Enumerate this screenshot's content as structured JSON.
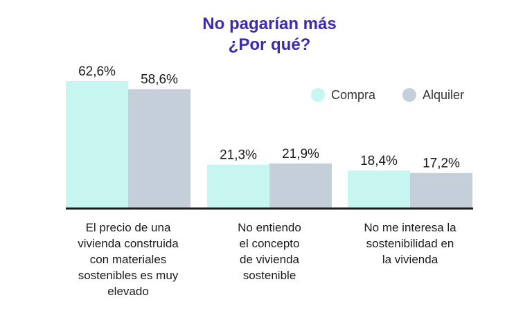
{
  "chart_data": {
    "type": "bar",
    "title": "No pagarían más",
    "subtitle": "¿Por qué?",
    "categories": [
      [
        "El precio de una",
        "vivienda construida",
        "con materiales",
        "sostenibles es muy",
        "elevado"
      ],
      [
        "No entiendo",
        "el concepto",
        "de vivienda",
        "sostenible"
      ],
      [
        "No me interesa la",
        "sostenibilidad en",
        "la vivienda"
      ]
    ],
    "series": [
      {
        "name": "Compra",
        "color": "#c7f5ef",
        "values": [
          62.6,
          21.3,
          18.4
        ],
        "labels": [
          "62,6%",
          "21,3%",
          "18,4%"
        ]
      },
      {
        "name": "Alquiler",
        "color": "#c5cfd9",
        "values": [
          58.6,
          21.9,
          17.2
        ],
        "labels": [
          "58,6%",
          "21,9%",
          "17,2%"
        ]
      }
    ],
    "ylim": [
      0,
      65
    ],
    "xlabel": "",
    "ylabel": "",
    "legend": "top-right",
    "grid": false
  }
}
